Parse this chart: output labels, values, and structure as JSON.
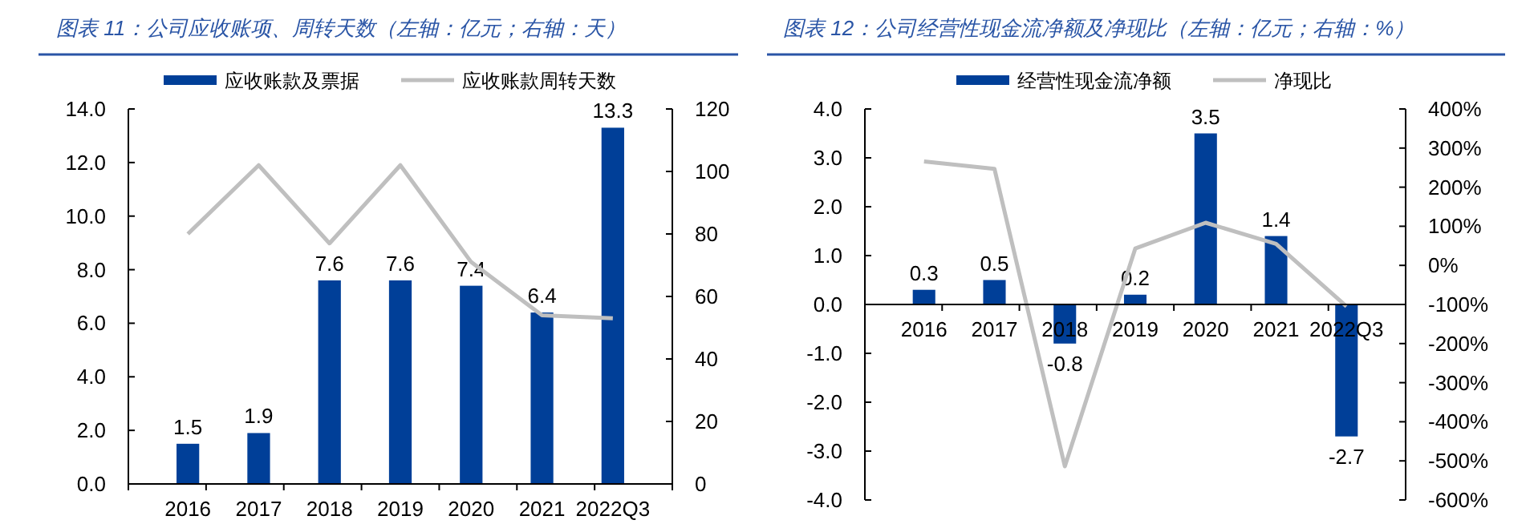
{
  "chart_data": [
    {
      "type": "bar",
      "title": "图表 11：公司应收账项、周转天数（左轴：亿元；右轴：天）",
      "categories": [
        "2016",
        "2017",
        "2018",
        "2019",
        "2020",
        "2021",
        "2022Q3"
      ],
      "series": [
        {
          "name": "应收账款及票据",
          "color": "#003f98",
          "values": [
            1.5,
            1.9,
            7.6,
            7.6,
            7.4,
            6.4,
            13.3
          ],
          "value_labels": [
            "1.5",
            "1.9",
            "7.6",
            "7.6",
            "7.4",
            "6.4",
            "13.3"
          ]
        },
        {
          "name": "应收账款周转天数",
          "type": "line",
          "axis": "y2",
          "color": "#bfbfbf",
          "values": [
            80,
            102,
            77,
            102,
            71,
            54,
            53
          ]
        }
      ],
      "ylim": [
        0,
        14
      ],
      "yticks": [
        {
          "value": 0,
          "label": "0.0"
        },
        {
          "value": 2,
          "label": "2.0"
        },
        {
          "value": 4,
          "label": "4.0"
        },
        {
          "value": 6,
          "label": "6.0"
        },
        {
          "value": 8,
          "label": "8.0"
        },
        {
          "value": 10,
          "label": "10.0"
        },
        {
          "value": 12,
          "label": "12.0"
        },
        {
          "value": 14,
          "label": "14.0"
        }
      ],
      "y2lim": [
        0,
        120
      ],
      "y2ticks": [
        0,
        20,
        40,
        60,
        80,
        100,
        120
      ],
      "legend": "top",
      "grid": false
    },
    {
      "type": "bar",
      "title": "图表 12：公司经营性现金流净额及净现比（左轴：亿元；右轴：%）",
      "categories": [
        "2016",
        "2017",
        "2018",
        "2019",
        "2020",
        "2021",
        "2022Q3"
      ],
      "series": [
        {
          "name": "经营性现金流净额",
          "color": "#003f98",
          "values": [
            0.3,
            0.5,
            -0.8,
            0.2,
            3.5,
            1.4,
            -2.7
          ],
          "value_labels": [
            "0.3",
            "0.5",
            "-0.8",
            "0.2",
            "3.5",
            "1.4",
            "-2.7"
          ]
        },
        {
          "name": "净现比",
          "type": "line",
          "axis": "y2",
          "color": "#bfbfbf",
          "values": [
            266,
            247,
            -514,
            43,
            109,
            55,
            -105
          ]
        }
      ],
      "ylim": [
        -4,
        4
      ],
      "yticks": [
        {
          "value": -4,
          "label": "-4.0"
        },
        {
          "value": -3,
          "label": "-3.0"
        },
        {
          "value": -2,
          "label": "-2.0"
        },
        {
          "value": -1,
          "label": "-1.0"
        },
        {
          "value": 0,
          "label": "0.0"
        },
        {
          "value": 1,
          "label": "1.0"
        },
        {
          "value": 2,
          "label": "2.0"
        },
        {
          "value": 3,
          "label": "3.0"
        },
        {
          "value": 4,
          "label": "4.0"
        }
      ],
      "y2lim": [
        -600,
        400
      ],
      "y2ticks": [
        {
          "value": -600,
          "label": "-600%"
        },
        {
          "value": -500,
          "label": "-500%"
        },
        {
          "value": -400,
          "label": "-400%"
        },
        {
          "value": -300,
          "label": "-300%"
        },
        {
          "value": -200,
          "label": "-200%"
        },
        {
          "value": -100,
          "label": "-100%"
        },
        {
          "value": 0,
          "label": "0%"
        },
        {
          "value": 100,
          "label": "100%"
        },
        {
          "value": 200,
          "label": "200%"
        },
        {
          "value": 300,
          "label": "300%"
        },
        {
          "value": 400,
          "label": "400%"
        }
      ],
      "legend": "top",
      "grid": false
    }
  ]
}
